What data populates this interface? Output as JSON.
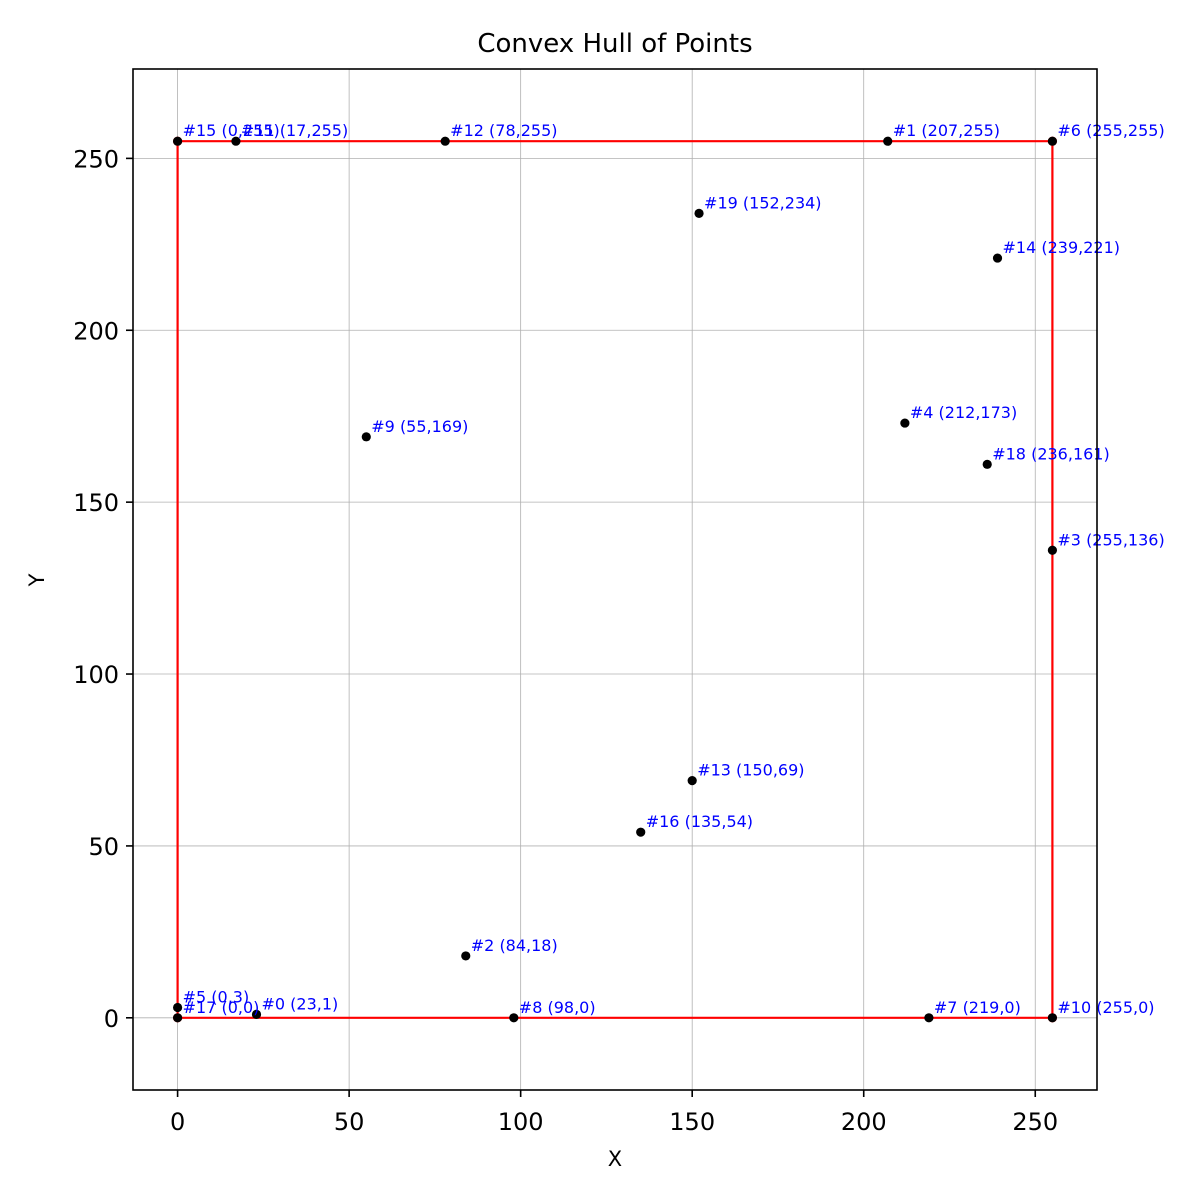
{
  "chart_data": {
    "type": "scatter",
    "title": "Convex Hull of Points",
    "xlabel": "X",
    "ylabel": "Y",
    "xlim": [
      -13,
      268
    ],
    "ylim": [
      -21,
      276
    ],
    "xticks": [
      0,
      50,
      100,
      150,
      200,
      250
    ],
    "yticks": [
      0,
      50,
      100,
      150,
      200,
      250
    ],
    "grid": true,
    "colors": {
      "point": "#000000",
      "hull": "#ff0000",
      "label": "#0000ff",
      "grid": "#b0b0b0"
    },
    "points": [
      {
        "label": "#0 (23,1)",
        "x": 23,
        "y": 1
      },
      {
        "label": "#1 (207,255)",
        "x": 207,
        "y": 255
      },
      {
        "label": "#2 (84,18)",
        "x": 84,
        "y": 18
      },
      {
        "label": "#3 (255,136)",
        "x": 255,
        "y": 136
      },
      {
        "label": "#4 (212,173)",
        "x": 212,
        "y": 173
      },
      {
        "label": "#5 (0,3)",
        "x": 0,
        "y": 3
      },
      {
        "label": "#6 (255,255)",
        "x": 255,
        "y": 255
      },
      {
        "label": "#7 (219,0)",
        "x": 219,
        "y": 0
      },
      {
        "label": "#8 (98,0)",
        "x": 98,
        "y": 0
      },
      {
        "label": "#9 (55,169)",
        "x": 55,
        "y": 169
      },
      {
        "label": "#10 (255,0)",
        "x": 255,
        "y": 0
      },
      {
        "label": "#11 (17,255)",
        "x": 17,
        "y": 255
      },
      {
        "label": "#12 (78,255)",
        "x": 78,
        "y": 255
      },
      {
        "label": "#13 (150,69)",
        "x": 150,
        "y": 69
      },
      {
        "label": "#14 (239,221)",
        "x": 239,
        "y": 221
      },
      {
        "label": "#15 (0,255)",
        "x": 0,
        "y": 255
      },
      {
        "label": "#16 (135,54)",
        "x": 135,
        "y": 54
      },
      {
        "label": "#17 (0,0)",
        "x": 0,
        "y": 0
      },
      {
        "label": "#18 (236,161)",
        "x": 236,
        "y": 161
      },
      {
        "label": "#19 (152,234)",
        "x": 152,
        "y": 234
      }
    ],
    "hull": [
      {
        "x": 0,
        "y": 0
      },
      {
        "x": 255,
        "y": 0
      },
      {
        "x": 255,
        "y": 255
      },
      {
        "x": 0,
        "y": 255
      }
    ]
  }
}
